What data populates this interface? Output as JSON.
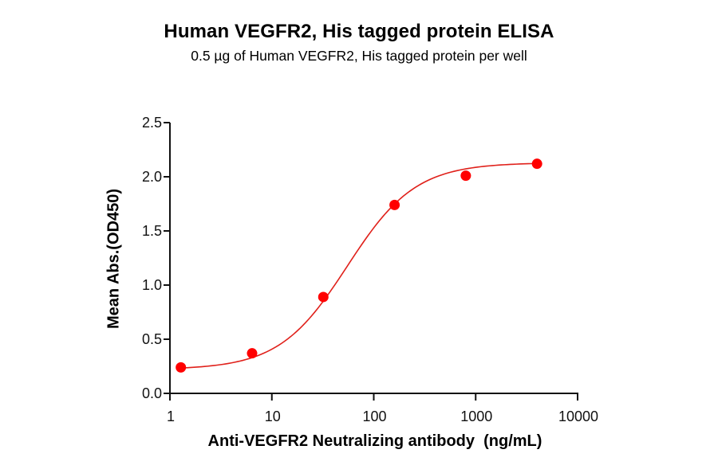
{
  "chart_data": {
    "type": "scatter",
    "title": "Human VEGFR2, His tagged protein ELISA",
    "subtitle": "0.5 µg of Human VEGFR2, His tagged protein per well",
    "xlabel": "Anti-VEGFR2 Neutralizing antibody  (ng/mL)",
    "ylabel": "Mean Abs.(OD450)",
    "xscale": "log",
    "xlim": [
      1,
      10000
    ],
    "ylim": [
      0,
      2.5
    ],
    "xticks": [
      1,
      10,
      100,
      1000,
      10000
    ],
    "xtick_labels": [
      "1",
      "10",
      "100",
      "1000",
      "10000"
    ],
    "yticks": [
      0,
      0.5,
      1.0,
      1.5,
      2.0,
      2.5
    ],
    "ytick_labels": [
      "0.0",
      "0.5",
      "1.0",
      "1.5",
      "2.0",
      "2.5"
    ],
    "grid": false,
    "legend": null,
    "series": [
      {
        "name": "Anti-VEGFR2 Neutralizing antibody",
        "color": "#ff0000",
        "marker": "circle",
        "fit": "4PL sigmoidal curve",
        "x": [
          1.28,
          6.4,
          32,
          160,
          800,
          4000
        ],
        "y": [
          0.24,
          0.37,
          0.89,
          1.74,
          2.01,
          2.12
        ]
      }
    ],
    "fit_params": {
      "bottom": 0.22,
      "top": 2.13,
      "ec50": 55,
      "hill": 1.3
    }
  }
}
